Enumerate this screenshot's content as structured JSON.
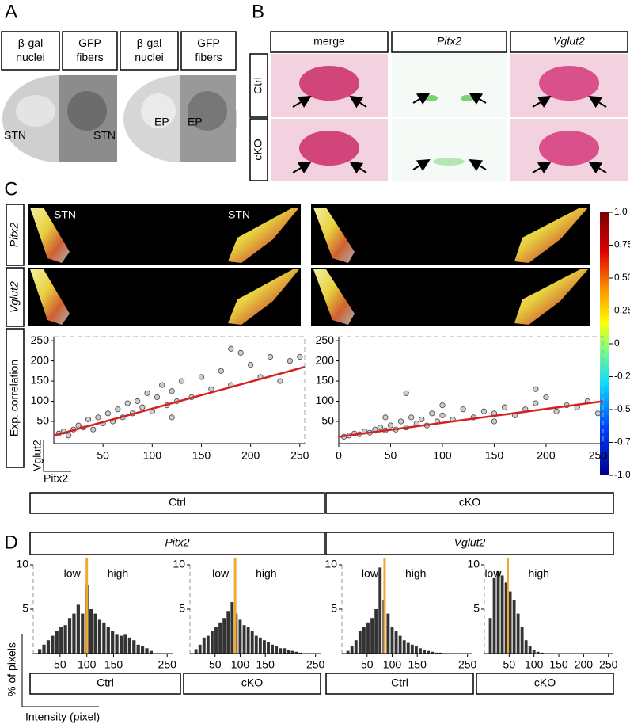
{
  "panel_labels": [
    "A",
    "B",
    "C",
    "D"
  ],
  "panel_a": {
    "headers": [
      "β-gal nuclei",
      "GFP fibers",
      "β-gal nuclei",
      "GFP fibers"
    ],
    "region_labels": [
      "STN",
      "STN",
      "EP",
      "EP"
    ]
  },
  "panel_b": {
    "columns": [
      "merge",
      "Pitx2",
      "Vglut2"
    ],
    "rows": [
      "Ctrl",
      "cKO"
    ]
  },
  "panel_c": {
    "image_rows": [
      "Pitx2",
      "Vglut2"
    ],
    "region_labels": [
      "STN",
      "STN"
    ],
    "row_label": "Exp. correlation",
    "y_label": "Vglut2",
    "x_label": "Pitx2",
    "conditions": [
      "Ctrl",
      "cKO"
    ],
    "colorbar": {
      "ylim": [
        -1,
        1
      ],
      "yticks": [
        {
          "value": 1,
          "label": "1.0"
        },
        0.75,
        {
          "value": 0.5,
          "label": "0.50"
        },
        0.25,
        0,
        -0.25,
        {
          "value": -0.5,
          "label": "-0.50"
        },
        -0.75,
        {
          "value": -1,
          "label": "-1.0"
        }
      ]
    }
  },
  "panel_d": {
    "genes": [
      "Pitx2",
      "Vglut2"
    ],
    "conditions": [
      "Ctrl",
      "cKO",
      "Ctrl",
      "cKO"
    ],
    "y_label": "% of pixels",
    "x_label": "Intensity (pixel)"
  },
  "chart_data": [
    {
      "type": "scatter",
      "color": "#cccccc",
      "fit_color": "#d42020",
      "x": [
        5,
        10,
        15,
        20,
        25,
        30,
        35,
        40,
        45,
        50,
        55,
        60,
        65,
        70,
        75,
        80,
        85,
        90,
        95,
        100,
        105,
        110,
        115,
        120,
        125,
        130,
        140,
        150,
        160,
        170,
        180,
        190,
        200,
        210,
        220,
        230,
        240,
        250,
        120,
        180
      ],
      "y": [
        20,
        25,
        15,
        30,
        40,
        35,
        55,
        30,
        60,
        45,
        70,
        50,
        80,
        60,
        95,
        70,
        100,
        85,
        120,
        75,
        110,
        140,
        90,
        125,
        100,
        150,
        110,
        160,
        130,
        175,
        140,
        220,
        190,
        160,
        210,
        150,
        200,
        210,
        60,
        230
      ],
      "fit": {
        "x": [
          0,
          255
        ],
        "y": [
          15,
          185
        ]
      },
      "xlim": [
        0,
        255
      ],
      "ylim": [
        -5,
        260
      ],
      "xticks": [
        50,
        100,
        150,
        200,
        250
      ],
      "yticks": [
        50,
        100,
        150,
        200,
        250
      ]
    },
    {
      "type": "scatter",
      "color": "#cccccc",
      "fit_color": "#d42020",
      "x": [
        5,
        10,
        15,
        20,
        25,
        30,
        35,
        40,
        45,
        50,
        55,
        60,
        65,
        70,
        75,
        80,
        85,
        90,
        95,
        100,
        110,
        120,
        130,
        140,
        150,
        160,
        170,
        180,
        190,
        200,
        210,
        220,
        230,
        240,
        250,
        45,
        65,
        100,
        150,
        190
      ],
      "y": [
        12,
        15,
        20,
        18,
        25,
        22,
        30,
        35,
        28,
        40,
        30,
        50,
        35,
        60,
        45,
        55,
        40,
        70,
        50,
        65,
        55,
        80,
        60,
        75,
        70,
        85,
        65,
        80,
        95,
        110,
        75,
        90,
        85,
        100,
        70,
        60,
        120,
        90,
        50,
        130
      ],
      "fit": {
        "x": [
          0,
          255
        ],
        "y": [
          12,
          100
        ]
      },
      "xlim": [
        0,
        255
      ],
      "ylim": [
        -5,
        260
      ],
      "xticks": [
        0,
        50,
        100,
        150,
        200,
        250
      ],
      "yticks": [
        50,
        100,
        150,
        200,
        250
      ]
    },
    {
      "type": "histogram",
      "color": "#333333",
      "threshold": 100,
      "threshold_color": "#f0a830",
      "annotations": [
        "low",
        "high"
      ],
      "bins": [
        8,
        16,
        24,
        32,
        40,
        48,
        56,
        64,
        72,
        80,
        88,
        96,
        104,
        112,
        120,
        128,
        136,
        144,
        152,
        160,
        168,
        176,
        184,
        192,
        200,
        208,
        216,
        224
      ],
      "values": [
        0.5,
        1,
        1.5,
        2,
        2.5,
        3,
        3.2,
        4,
        4.5,
        5.5,
        4.5,
        7.7,
        5,
        4.5,
        3.8,
        3.5,
        3,
        2.5,
        2.2,
        2,
        2.2,
        1.8,
        1.5,
        1,
        0.8,
        0.6,
        0.3
      ],
      "xlim": [
        0,
        260
      ],
      "ylim": [
        0,
        10
      ],
      "xticks": [
        50,
        100,
        150,
        250
      ],
      "yticks": [
        5,
        10
      ]
    },
    {
      "type": "histogram",
      "color": "#333333",
      "threshold": 90,
      "threshold_color": "#f0a830",
      "annotations": [
        "low",
        "high"
      ],
      "bins": [
        8,
        16,
        24,
        32,
        40,
        48,
        56,
        64,
        72,
        80,
        88,
        96,
        104,
        112,
        120,
        128,
        136,
        144,
        152,
        160,
        168,
        176,
        184,
        192,
        200,
        208,
        216,
        224
      ],
      "values": [
        0.5,
        1,
        1.8,
        2,
        2.5,
        3,
        3.5,
        4,
        4.8,
        5.8,
        4.5,
        3.8,
        3.2,
        3,
        2.5,
        2,
        1.8,
        1.5,
        1.3,
        1,
        0.8,
        0.6,
        0.6,
        0.4,
        0.3,
        0.2,
        0.1
      ],
      "xlim": [
        0,
        260
      ],
      "ylim": [
        0,
        10
      ],
      "xticks": [
        50,
        100,
        150,
        250
      ],
      "yticks": [
        5,
        10
      ]
    },
    {
      "type": "histogram",
      "color": "#333333",
      "threshold": 85,
      "threshold_color": "#f0a830",
      "annotations": [
        "low",
        "high"
      ],
      "bins": [
        8,
        16,
        24,
        32,
        40,
        48,
        56,
        64,
        72,
        80,
        88,
        96,
        104,
        112,
        120,
        128,
        136,
        144,
        152,
        160,
        168,
        176,
        184,
        192,
        200,
        208,
        216,
        224
      ],
      "values": [
        0.3,
        0.8,
        1.5,
        2.5,
        3,
        3.5,
        4,
        5,
        9.7,
        6,
        4.5,
        3,
        2.5,
        2,
        1.5,
        1.2,
        1,
        0.8,
        0.6,
        0.4,
        0.3,
        0.2,
        0.1,
        0.1,
        0.05,
        0.05,
        0
      ],
      "xlim": [
        0,
        260
      ],
      "ylim": [
        0,
        10
      ],
      "xticks": [
        50,
        100,
        150,
        250
      ],
      "yticks": [
        5,
        10
      ]
    },
    {
      "type": "histogram",
      "color": "#333333",
      "threshold": 47,
      "threshold_color": "#f0a830",
      "annotations": [
        "low",
        "high"
      ],
      "bins": [
        8,
        16,
        24,
        32,
        40,
        48,
        56,
        64,
        72,
        80,
        88,
        96,
        104,
        112,
        120,
        128,
        136,
        144,
        152,
        160,
        168,
        176,
        184,
        192,
        200,
        208,
        216,
        224
      ],
      "values": [
        4,
        8.5,
        9.3,
        8.8,
        8,
        7,
        6,
        4.5,
        3,
        1.5,
        0.8,
        0.4,
        0.2,
        0.1,
        0.05,
        0,
        0,
        0,
        0,
        0,
        0,
        0,
        0,
        0,
        0,
        0,
        0
      ],
      "xlim": [
        0,
        260
      ],
      "ylim": [
        0,
        10
      ],
      "xticks": [
        50,
        100,
        150,
        200,
        250
      ],
      "yticks": [
        5,
        10
      ]
    }
  ]
}
